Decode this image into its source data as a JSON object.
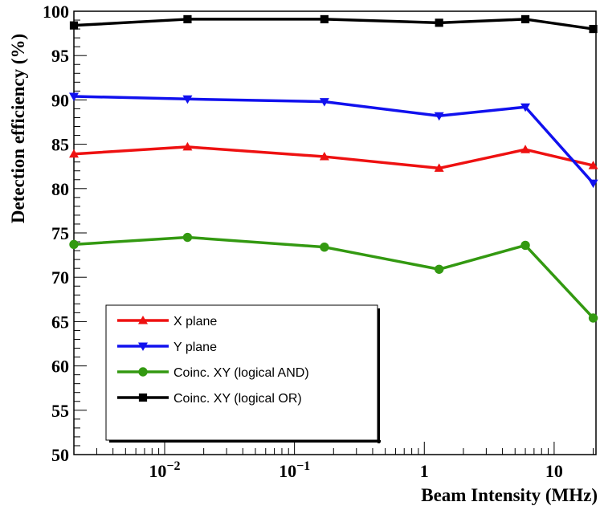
{
  "chart_data": {
    "type": "line",
    "title": "",
    "xlabel": "Beam Intensity (MHz)",
    "ylabel": "Detection efficiency (%)",
    "xscale": "log",
    "xlim": [
      0.002,
      21
    ],
    "ylim": [
      50,
      100
    ],
    "grid": false,
    "legend_position": "bottom-left",
    "x": [
      0.002,
      0.015,
      0.17,
      1.3,
      6,
      20
    ],
    "xticks": [
      {
        "value": 0.01,
        "base": "10",
        "exp": "−2"
      },
      {
        "value": 0.1,
        "base": "10",
        "exp": "−1"
      },
      {
        "value": 1,
        "base": "1",
        "exp": ""
      },
      {
        "value": 10,
        "base": "10",
        "exp": ""
      }
    ],
    "yticks": [
      50,
      55,
      60,
      65,
      70,
      75,
      80,
      85,
      90,
      95,
      100
    ],
    "series": [
      {
        "name": "X plane",
        "color": "#ee1111",
        "marker": "triangle-up",
        "values": [
          83.9,
          84.7,
          83.6,
          82.3,
          84.4,
          82.6
        ]
      },
      {
        "name": "Y plane",
        "color": "#1111ee",
        "marker": "triangle-down",
        "values": [
          90.4,
          90.1,
          89.8,
          88.2,
          89.2,
          80.6
        ]
      },
      {
        "name": "Coinc. XY (logical AND)",
        "color": "#339911",
        "marker": "circle",
        "values": [
          73.7,
          74.5,
          73.4,
          70.9,
          73.6,
          65.4
        ]
      },
      {
        "name": "Coinc. XY (logical OR)",
        "color": "#000000",
        "marker": "square",
        "values": [
          98.4,
          99.1,
          99.1,
          98.7,
          99.1,
          98.0
        ]
      }
    ]
  }
}
